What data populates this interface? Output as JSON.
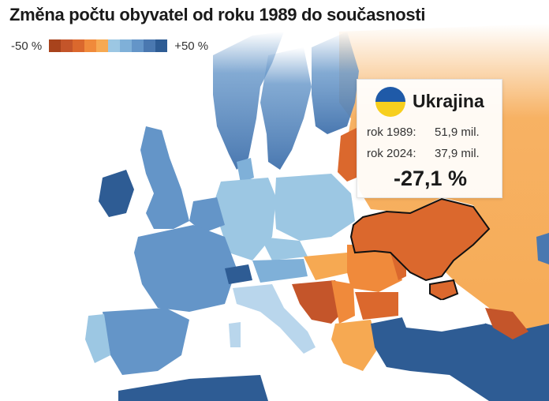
{
  "title": "Změna počtu obyvatel od roku 1989 do současnosti",
  "legend": {
    "min_label": "-50 %",
    "max_label": "+50 %",
    "colors": [
      "#a8431c",
      "#c4552a",
      "#db682d",
      "#f08a3b",
      "#f6a952",
      "#9cc7e3",
      "#7fb0d8",
      "#6495c8",
      "#4a78b0",
      "#2e5c94"
    ]
  },
  "highlight": {
    "country": "Ukrajina",
    "row1_label": "rok 1989:",
    "row1_value": "51,9 mil.",
    "row2_label": "rok 2024:",
    "row2_value": "37,9 mil.",
    "change": "-27,1 %",
    "flag_colors": [
      "#1f5aa8",
      "#f7cf1e"
    ]
  },
  "map_colors": {
    "sea": "#ffffff",
    "russia": "#f6a952",
    "ukraine": "#db682d",
    "balkan_dark": "#c4552a",
    "eastern_decline": "#f08a3b",
    "central_growth": "#9cc7e3",
    "western_growth": "#6495c8",
    "strong_growth": "#2e5c94",
    "light_growth": "#b9d6ec"
  }
}
